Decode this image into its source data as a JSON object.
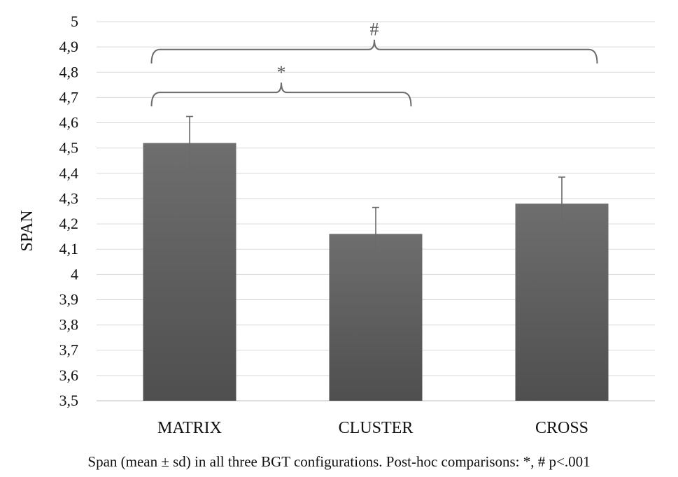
{
  "chart_data": {
    "type": "bar",
    "categories": [
      "MATRIX",
      "CLUSTER",
      "CROSS"
    ],
    "values": [
      4.52,
      4.16,
      4.28
    ],
    "error_sd": [
      0.105,
      0.105,
      0.105
    ],
    "ylabel": "SPAN",
    "xlabel": "",
    "ylim": [
      3.5,
      5
    ],
    "yticks": [
      "3,5",
      "3,6",
      "3,7",
      "3,8",
      "3,9",
      "4",
      "4,1",
      "4,2",
      "4,3",
      "4,4",
      "4,5",
      "4,6",
      "4,7",
      "4,8",
      "4,9",
      "5"
    ],
    "grid": true,
    "legend": "none",
    "bar_color": "#5f5f5f",
    "annotations": [
      {
        "from": "MATRIX",
        "to": "CLUSTER",
        "symbol": "*",
        "level": 4.72
      },
      {
        "from": "MATRIX",
        "to": "CROSS",
        "symbol": "#",
        "level": 4.89
      }
    ]
  },
  "caption": "Span (mean ± sd) in all three BGT configurations. Post-hoc comparisons: *, # p<.001"
}
